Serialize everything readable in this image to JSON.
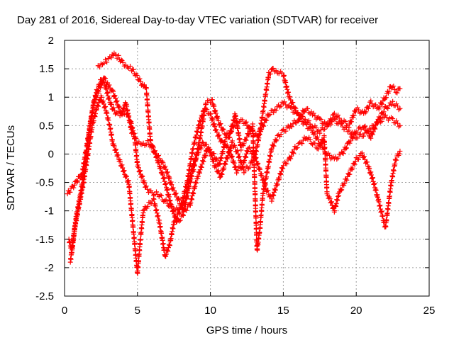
{
  "chart_data": {
    "type": "scatter",
    "title": "Day 281 of 2016, Sidereal Day-to-day VTEC variation (SDTVAR) for receiver",
    "xlabel": "GPS time / hours",
    "ylabel": "SDTVAR / TECUs",
    "xlim": [
      0,
      25
    ],
    "ylim": [
      -2.5,
      2
    ],
    "xticks": [
      0,
      5,
      10,
      15,
      20,
      25
    ],
    "xtick_labels": [
      "0",
      "5",
      "10",
      "15",
      "20",
      "25"
    ],
    "yticks": [
      -2.5,
      -2,
      -1.5,
      -1,
      -0.5,
      0,
      0.5,
      1,
      1.5,
      2
    ],
    "ytick_labels": [
      "-2.5",
      "-2",
      "-1.5",
      "-1",
      "-0.5",
      "0",
      "0.5",
      "1",
      "1.5",
      "2"
    ],
    "grid": true,
    "marker": "+",
    "color": "#ff0000",
    "series": [
      {
        "x": [
          0.2,
          0.5,
          0.8,
          1.0,
          1.2,
          1.5,
          1.8,
          2.0,
          2.2,
          2.5,
          2.8,
          3.0,
          3.3,
          3.6,
          3.9,
          4.2,
          4.5,
          4.8,
          5.0,
          5.3,
          5.6,
          6.0,
          6.4,
          6.8,
          7.2,
          7.6,
          8.0,
          8.4,
          8.8,
          9.2,
          9.6,
          10.0,
          10.4,
          10.8,
          11.2,
          11.6,
          12.0,
          12.4,
          12.8,
          13.2,
          13.6,
          14.0,
          14.5,
          15.0,
          15.5,
          16.0,
          16.5,
          17.0,
          17.5,
          18.0,
          18.5,
          19.0,
          19.5,
          20.0,
          20.5,
          21.0,
          21.5,
          22.0,
          22.5,
          23.0
        ],
        "y": [
          -0.7,
          -0.6,
          -0.5,
          -0.4,
          -0.35,
          0.1,
          0.6,
          0.9,
          1.1,
          1.3,
          1.2,
          1.0,
          0.8,
          0.7,
          0.7,
          0.75,
          0.6,
          0.3,
          -0.2,
          -0.4,
          -0.6,
          -0.7,
          -0.7,
          -0.8,
          -0.9,
          -1.0,
          -0.9,
          -0.5,
          0.1,
          0.5,
          0.8,
          0.7,
          0.4,
          0.2,
          0.3,
          0.5,
          0.6,
          0.55,
          0.4,
          0.3,
          0.5,
          0.7,
          0.8,
          0.9,
          0.8,
          0.7,
          0.6,
          0.5,
          0.4,
          0.5,
          0.6,
          0.5,
          0.4,
          0.3,
          0.35,
          0.45,
          0.55,
          0.65,
          0.6,
          0.5
        ]
      },
      {
        "x": [
          0.3,
          0.5,
          0.8,
          1.1,
          1.4,
          1.7,
          2.0,
          2.3,
          2.7,
          3.0,
          3.3,
          3.6,
          3.9,
          4.2,
          4.6,
          5.0,
          5.3,
          5.7,
          6.1,
          6.5,
          6.9,
          7.3,
          7.7,
          8.1,
          8.5,
          8.9,
          9.3,
          9.7,
          10.1,
          10.5,
          10.9,
          11.3,
          11.7,
          12.1,
          12.5,
          12.9,
          13.2,
          13.4,
          13.6,
          13.9,
          14.2,
          14.6,
          15.0,
          15.5,
          16.0,
          16.5,
          17.0,
          17.5,
          18.0,
          18.5,
          19.0,
          19.5,
          20.0,
          20.5,
          21.0,
          21.5,
          22.0,
          22.4,
          22.8,
          23.0
        ],
        "y": [
          -1.5,
          -1.7,
          -1.1,
          -0.7,
          -0.2,
          0.4,
          0.9,
          1.1,
          1.35,
          1.2,
          1.1,
          0.9,
          0.7,
          0.9,
          0.4,
          0.2,
          0.15,
          0.2,
          0.1,
          -0.2,
          -0.5,
          -0.9,
          -1.2,
          -1.1,
          -0.6,
          -0.2,
          0.3,
          0.9,
          0.95,
          0.6,
          0.4,
          0.3,
          0.7,
          0.1,
          0.3,
          0.5,
          -1.7,
          -1.3,
          -0.7,
          -0.3,
          0.1,
          0.3,
          0.4,
          0.5,
          0.6,
          0.8,
          0.7,
          0.6,
          0.5,
          0.7,
          0.6,
          0.5,
          0.8,
          0.7,
          0.9,
          0.8,
          1.0,
          1.2,
          1.1,
          1.15
        ]
      },
      {
        "x": [
          0.4,
          0.7,
          1.0,
          1.3,
          1.6,
          1.9,
          2.2,
          2.5,
          2.8,
          3.1,
          3.3,
          3.6,
          3.9,
          4.2,
          4.4,
          5.0,
          5.2,
          5.4,
          5.7,
          6.1,
          6.5,
          6.9,
          7.2,
          7.5,
          7.9,
          8.3,
          8.7,
          9.1,
          9.5,
          9.9,
          10.3,
          10.7,
          11.1,
          11.5,
          11.9,
          12.3,
          12.7,
          13.1,
          13.4,
          14.0,
          14.3,
          14.6,
          15.0,
          15.4,
          15.8,
          16.2,
          16.6,
          17.0,
          17.5,
          18.0,
          18.5,
          19.0,
          19.5,
          20.0,
          20.5,
          21.0,
          21.5,
          22.0,
          22.5,
          23.0
        ],
        "y": [
          -1.9,
          -1.3,
          -0.9,
          -0.5,
          0.0,
          0.5,
          0.8,
          1.0,
          0.8,
          0.5,
          0.2,
          0.0,
          -0.2,
          -0.4,
          -0.5,
          -2.1,
          -1.5,
          -1.0,
          -0.9,
          -0.8,
          -1.2,
          -1.8,
          -1.6,
          -1.2,
          -1.0,
          -0.8,
          -0.3,
          0.0,
          0.2,
          0.1,
          -0.2,
          -0.4,
          -0.1,
          0.2,
          0.0,
          -0.3,
          -0.2,
          0.0,
          0.4,
          1.4,
          1.5,
          1.45,
          1.4,
          1.0,
          0.8,
          0.6,
          0.5,
          0.4,
          0.2,
          0.0,
          -0.1,
          0.0,
          0.2,
          0.4,
          0.5,
          0.3,
          0.6,
          0.8,
          0.9,
          0.8
        ]
      },
      {
        "x": [
          2.3,
          2.6,
          2.9,
          3.2,
          3.4,
          3.7,
          4.0,
          4.3,
          4.6,
          5.4,
          5.6,
          5.9,
          6.2,
          6.6,
          7.0,
          7.4,
          7.8,
          8.2,
          8.6,
          9.0,
          9.4,
          9.8,
          10.2,
          10.6,
          11.0,
          11.4,
          11.8,
          12.2,
          12.6,
          13.0,
          13.4,
          13.8,
          14.2,
          14.6,
          15.0,
          15.4,
          15.8,
          16.2,
          16.6,
          17.0,
          17.4,
          17.8,
          18.0,
          18.2,
          18.5,
          18.8,
          19.2,
          19.6,
          20.0,
          20.4,
          20.8,
          21.2,
          21.5,
          21.8,
          22.0,
          22.4,
          22.7,
          23.0
        ],
        "y": [
          1.55,
          1.6,
          1.65,
          1.7,
          1.75,
          1.7,
          1.6,
          1.55,
          1.5,
          1.2,
          1.15,
          0.2,
          0.0,
          -0.1,
          -0.3,
          -0.6,
          -0.8,
          -1.0,
          -0.9,
          -0.5,
          -0.2,
          0.1,
          0.0,
          -0.2,
          0.2,
          0.0,
          -0.3,
          -0.2,
          0.1,
          0.0,
          -0.3,
          -0.6,
          -0.8,
          -0.5,
          -0.2,
          -0.1,
          0.1,
          0.2,
          0.3,
          0.2,
          0.1,
          0.3,
          -0.7,
          -0.8,
          -1.0,
          -0.7,
          -0.5,
          -0.3,
          -0.1,
          0.0,
          -0.2,
          -0.5,
          -0.8,
          -1.1,
          -1.3,
          -0.5,
          -0.1,
          0.05
        ]
      }
    ]
  }
}
